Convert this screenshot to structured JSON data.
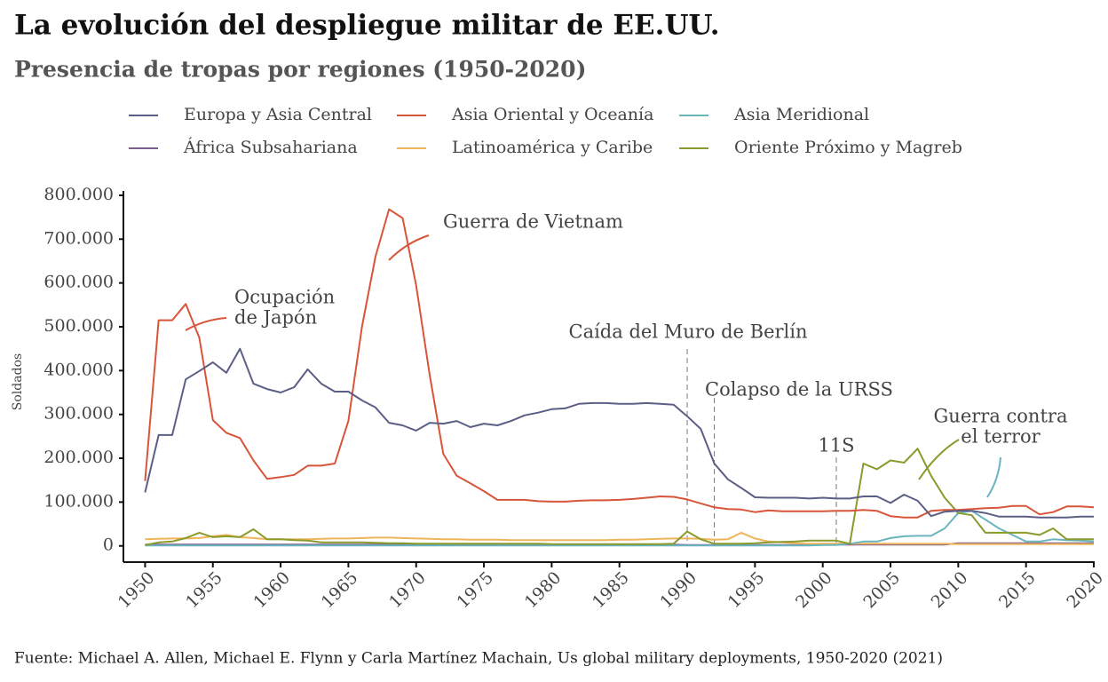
{
  "chart_data": {
    "type": "line",
    "title": "La evolución del despliegue militar de EE.UU.",
    "subtitle": "Presencia de tropas por regiones (1950-2020)",
    "y_label": "Soldados",
    "source": "Fuente: Michael A. Allen, Michael E. Flynn y Carla Martínez Machain, Us global military deployments, 1950-2020 (2021)",
    "x": [
      1950,
      1951,
      1952,
      1953,
      1954,
      1955,
      1956,
      1957,
      1958,
      1959,
      1960,
      1961,
      1962,
      1963,
      1964,
      1965,
      1966,
      1967,
      1968,
      1969,
      1970,
      1971,
      1972,
      1973,
      1974,
      1975,
      1976,
      1977,
      1978,
      1979,
      1980,
      1981,
      1982,
      1983,
      1984,
      1985,
      1986,
      1987,
      1988,
      1989,
      1990,
      1991,
      1992,
      1993,
      1994,
      1995,
      1996,
      1997,
      1998,
      1999,
      2000,
      2001,
      2002,
      2003,
      2004,
      2005,
      2006,
      2007,
      2008,
      2009,
      2010,
      2011,
      2012,
      2013,
      2014,
      2015,
      2016,
      2017,
      2018,
      2019,
      2020
    ],
    "xlim": [
      1948.4,
      2020
    ],
    "xticks": [
      1950,
      1955,
      1960,
      1965,
      1970,
      1975,
      1980,
      1985,
      1990,
      1995,
      2000,
      2005,
      2010,
      2015,
      2020
    ],
    "ylim": [
      -37000,
      810000
    ],
    "yticks": [
      0,
      {
        "value": 100000,
        "label": "100.000"
      },
      {
        "value": 200000,
        "label": "200.000"
      },
      {
        "value": 300000,
        "label": "300.000"
      },
      {
        "value": 400000,
        "label": "400.000"
      },
      {
        "value": 500000,
        "label": "500.000"
      },
      {
        "value": 600000,
        "label": "600.000"
      },
      {
        "value": 700000,
        "label": "700.000"
      },
      {
        "value": 800000,
        "label": "800.000"
      }
    ],
    "grid": false,
    "series": [
      {
        "name": "Europa y Asia Central",
        "color": "#5b5f85",
        "values": [
          122000,
          253000,
          253000,
          380000,
          399000,
          419000,
          395000,
          450000,
          370000,
          358000,
          350000,
          362000,
          403000,
          370000,
          352000,
          352000,
          332000,
          316000,
          281000,
          275000,
          263000,
          281000,
          279000,
          285000,
          271000,
          279000,
          275000,
          285000,
          298000,
          304000,
          312000,
          314000,
          324000,
          326000,
          326000,
          324000,
          324000,
          326000,
          324000,
          322000,
          296000,
          267000,
          188000,
          152000,
          132000,
          111000,
          110000,
          110000,
          110000,
          108000,
          110000,
          108000,
          108000,
          113000,
          113000,
          98000,
          117000,
          103000,
          68000,
          78000,
          80000,
          80000,
          75000,
          67000,
          67000,
          67000,
          65000,
          65000,
          65000,
          67000,
          67000
        ]
      },
      {
        "name": "Asia Oriental y Oceanía",
        "color": "#d9553a",
        "values": [
          148000,
          515000,
          515000,
          552000,
          475000,
          287000,
          258000,
          246000,
          195000,
          153000,
          157000,
          162000,
          183000,
          183000,
          188000,
          285000,
          500000,
          660000,
          768000,
          748000,
          595000,
          390000,
          210000,
          160000,
          143000,
          125000,
          105000,
          105000,
          105000,
          102000,
          101000,
          101000,
          103000,
          104000,
          104000,
          105000,
          107000,
          110000,
          113000,
          112000,
          106000,
          97000,
          88000,
          84000,
          83000,
          77000,
          81000,
          79000,
          79000,
          79000,
          79000,
          80000,
          80000,
          82000,
          80000,
          68000,
          65000,
          65000,
          80000,
          82000,
          82000,
          84000,
          86000,
          87000,
          91000,
          91000,
          72000,
          77000,
          90000,
          90000,
          88000
        ]
      },
      {
        "name": "Asia Meridional",
        "color": "#6bb5bf",
        "values": [
          1000,
          1000,
          1000,
          1000,
          1000,
          1000,
          1000,
          1000,
          1000,
          1000,
          1000,
          1000,
          1000,
          1000,
          1000,
          1000,
          1000,
          1000,
          1000,
          1000,
          1000,
          1000,
          1000,
          1000,
          1000,
          1000,
          1000,
          1000,
          1000,
          1000,
          1000,
          1000,
          1000,
          1000,
          1000,
          1000,
          1000,
          1000,
          1000,
          1000,
          1000,
          1000,
          1000,
          1000,
          1000,
          1000,
          1000,
          1000,
          1000,
          1000,
          2000,
          2000,
          5000,
          10000,
          10000,
          18000,
          22000,
          23000,
          23000,
          40000,
          75000,
          80000,
          60000,
          40000,
          25000,
          10000,
          10000,
          15000,
          13000,
          12000,
          10000
        ]
      },
      {
        "name": "África Subsahariana",
        "color": "#7b5c8c",
        "values": [
          3000,
          3000,
          3000,
          3000,
          3000,
          3000,
          3000,
          3000,
          3000,
          3000,
          3000,
          3000,
          3000,
          3000,
          3000,
          3000,
          3000,
          3000,
          3000,
          3000,
          3000,
          3000,
          3000,
          3000,
          3000,
          3000,
          3000,
          3000,
          3000,
          3000,
          3000,
          3000,
          3000,
          3000,
          3000,
          3000,
          3000,
          3000,
          3000,
          3000,
          2000,
          2000,
          2000,
          2000,
          2000,
          2000,
          2000,
          2000,
          2000,
          2000,
          3000,
          3000,
          3000,
          3000,
          3000,
          3000,
          3000,
          3000,
          3000,
          3000,
          6000,
          6000,
          6000,
          6000,
          6000,
          6000,
          6000,
          6000,
          6000,
          6000,
          6000
        ]
      },
      {
        "name": "Latinoamérica y Caribe",
        "color": "#f0b45a",
        "values": [
          15000,
          16000,
          17000,
          17000,
          18000,
          22000,
          25000,
          20000,
          18000,
          15000,
          15000,
          15000,
          15000,
          16000,
          17000,
          17000,
          18000,
          19000,
          19000,
          18000,
          17000,
          16000,
          15000,
          15000,
          14000,
          14000,
          14000,
          13000,
          13000,
          13000,
          13000,
          13000,
          13000,
          13000,
          13000,
          14000,
          14000,
          15000,
          16000,
          17000,
          17000,
          16000,
          14000,
          15000,
          30000,
          17000,
          10000,
          8000,
          6000,
          5000,
          5000,
          5000,
          5000,
          5000,
          5000,
          5000,
          5000,
          5000,
          5000,
          5000,
          4000,
          4000,
          4000,
          4000,
          4000,
          4000,
          4000,
          4000,
          4000,
          4000,
          4000
        ]
      },
      {
        "name": "Oriente Próximo y Magreb",
        "color": "#8a9a2b",
        "values": [
          2000,
          8000,
          10000,
          18000,
          30000,
          20000,
          22000,
          20000,
          38000,
          15000,
          15000,
          13000,
          12000,
          8000,
          8000,
          8000,
          8000,
          7000,
          6000,
          6000,
          5000,
          5000,
          5000,
          5000,
          5000,
          5000,
          5000,
          5000,
          5000,
          5000,
          4000,
          4000,
          4000,
          4000,
          4000,
          4000,
          4000,
          4000,
          4000,
          5000,
          33000,
          15000,
          5000,
          5000,
          5000,
          6000,
          8000,
          9000,
          10000,
          12000,
          12000,
          12000,
          5000,
          188000,
          175000,
          195000,
          190000,
          222000,
          160000,
          110000,
          75000,
          70000,
          30000,
          30000,
          30000,
          30000,
          25000,
          40000,
          15000,
          15000,
          15000
        ]
      }
    ],
    "annotations": [
      {
        "text": [
          "Ocupación",
          "de Japón"
        ]
      },
      {
        "text": [
          "Guerra de Vietnam"
        ]
      },
      {
        "text": [
          "Caída del Muro de Berlín"
        ],
        "x": 1990
      },
      {
        "text": [
          "Colapso de la URSS"
        ],
        "x": 1992
      },
      {
        "text": [
          "11S"
        ],
        "x": 2001
      },
      {
        "text": [
          "Guerra contra",
          "el terror"
        ]
      }
    ]
  }
}
